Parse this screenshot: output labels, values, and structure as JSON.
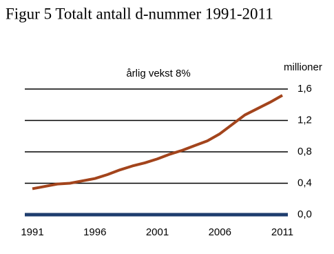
{
  "chart_data": {
    "type": "line",
    "title": "Figur 5 Totalt antall d-nummer 1991-2011",
    "y_axis_label": "millioner",
    "annotation": "årlig vekst 8%",
    "x": [
      1991,
      1992,
      1993,
      1994,
      1995,
      1996,
      1997,
      1998,
      1999,
      2000,
      2001,
      2002,
      2003,
      2004,
      2005,
      2006,
      2007,
      2008,
      2009,
      2010,
      2011
    ],
    "series": [
      {
        "color": "#a3441c",
        "values": [
          0.33,
          0.36,
          0.39,
          0.4,
          0.43,
          0.46,
          0.51,
          0.57,
          0.62,
          0.66,
          0.71,
          0.77,
          0.82,
          0.88,
          0.94,
          1.03,
          1.15,
          1.27,
          1.35,
          1.43,
          1.52
        ]
      }
    ],
    "xlim": [
      1991,
      2011
    ],
    "xticks": [
      1991,
      1996,
      2001,
      2006,
      2011
    ],
    "ylim": [
      0,
      1.6
    ],
    "yticks": [
      {
        "value": 0,
        "label": "0,0"
      },
      {
        "value": 0.4,
        "label": "0,4"
      },
      {
        "value": 0.8,
        "label": "0,8"
      },
      {
        "value": 1.2,
        "label": "1,2"
      },
      {
        "value": 1.6,
        "label": "1,6"
      }
    ],
    "grid": true,
    "grid_color": "#000000",
    "baseline_color": "#1f3d6e"
  }
}
